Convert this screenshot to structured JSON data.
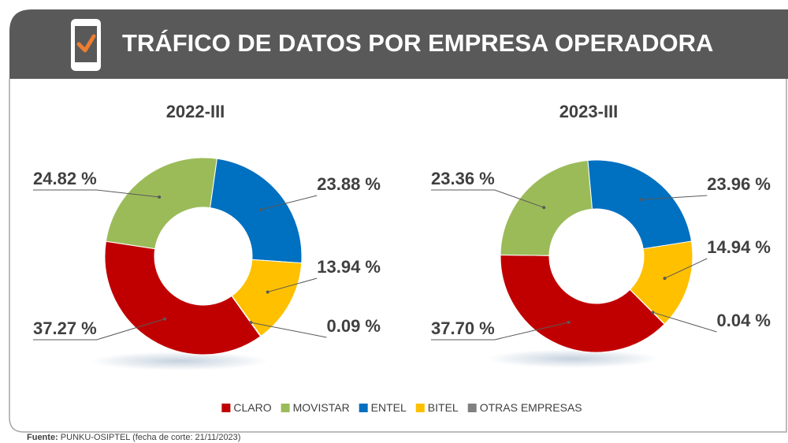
{
  "header": {
    "title": "TRÁFICO DE DATOS POR EMPRESA OPERADORA"
  },
  "chart_data": [
    {
      "type": "pie",
      "title": "2022-III",
      "categories": [
        "CLARO",
        "MOVISTAR",
        "ENTEL",
        "BITEL",
        "OTRAS EMPRESAS"
      ],
      "values": [
        37.27,
        24.82,
        23.88,
        13.94,
        0.09
      ],
      "value_labels": [
        "37.27 %",
        "24.82 %",
        "23.88 %",
        "13.94 %",
        "0.09 %"
      ],
      "colors": [
        "#c00000",
        "#9bbb59",
        "#0070c0",
        "#ffc000",
        "#808080"
      ]
    },
    {
      "type": "pie",
      "title": "2023-III",
      "categories": [
        "CLARO",
        "MOVISTAR",
        "ENTEL",
        "BITEL",
        "OTRAS EMPRESAS"
      ],
      "values": [
        37.7,
        23.36,
        23.96,
        14.94,
        0.04
      ],
      "value_labels": [
        "37.70 %",
        "23.36 %",
        "23.96 %",
        "14.94 %",
        "0.04 %"
      ],
      "colors": [
        "#c00000",
        "#9bbb59",
        "#0070c0",
        "#ffc000",
        "#808080"
      ]
    }
  ],
  "footer": {
    "source_label": "Fuente:",
    "source": "PUNKU-OSIPTEL (fecha de corte: 21/11/2023)"
  }
}
